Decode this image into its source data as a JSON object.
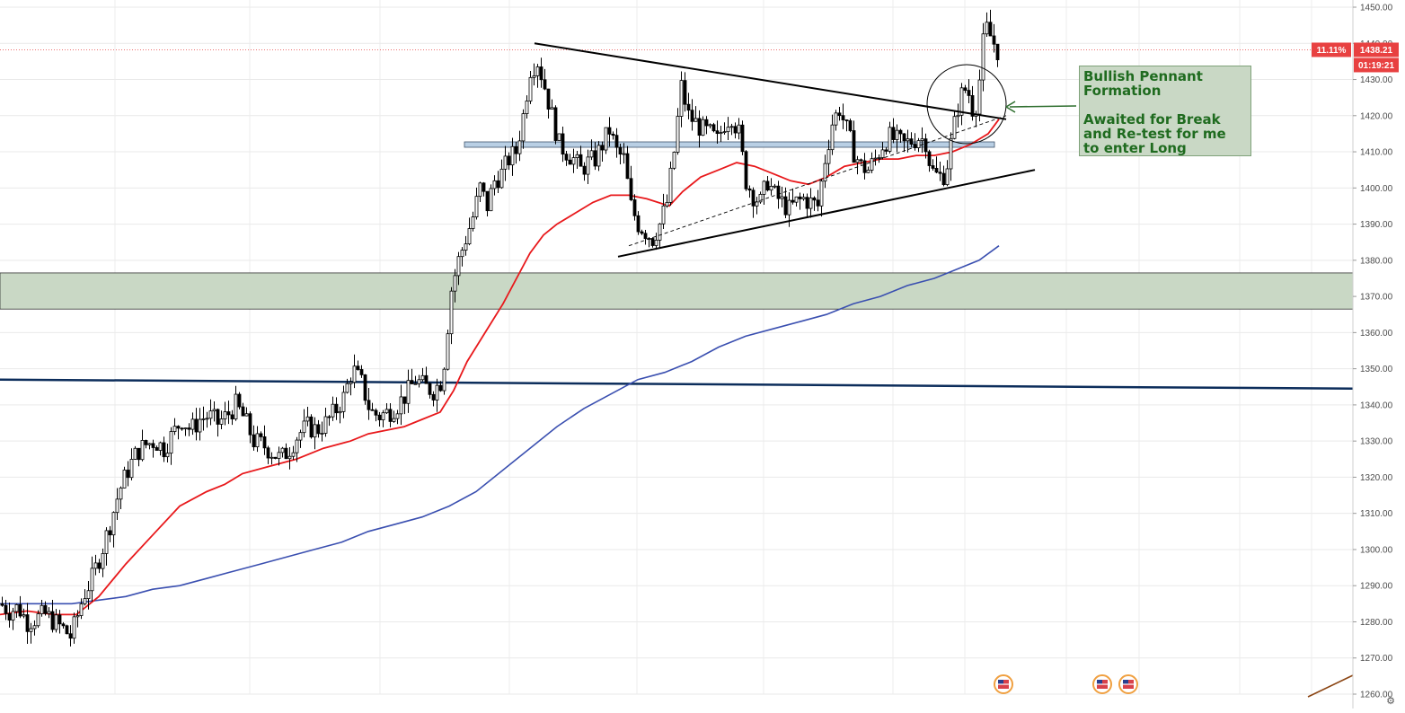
{
  "chart_data": {
    "type": "candlestick",
    "y_range": [
      1258,
      1451
    ],
    "y_ticks": [
      1260,
      1270,
      1280,
      1290,
      1300,
      1310,
      1320,
      1330,
      1340,
      1350,
      1360,
      1370,
      1380,
      1390,
      1400,
      1410,
      1420,
      1430,
      1440,
      1450
    ],
    "y_tick_labels": [
      "1260.00",
      "1270.00",
      "1280.00",
      "1290.00",
      "1300.00",
      "1310.00",
      "1320.00",
      "1330.00",
      "1340.00",
      "1350.00",
      "1360.00",
      "1370.00",
      "1380.00",
      "1390.00",
      "1400.00",
      "1410.00",
      "1420.00",
      "1430.00",
      "1440.00",
      "1450.00"
    ],
    "last_price": "1438.21",
    "change_percent": "11.11%",
    "countdown": "01:19:21",
    "support_zone": [
      1366.5,
      1376.5
    ],
    "resistance_level": 1412,
    "horizontal_line": {
      "start": 1347,
      "end": 1344.5
    },
    "price_path": [
      [
        0,
        1285
      ],
      [
        10,
        1283
      ],
      [
        20,
        1284
      ],
      [
        30,
        1280
      ],
      [
        40,
        1281
      ],
      [
        50,
        1282
      ],
      [
        60,
        1280
      ],
      [
        70,
        1278
      ],
      [
        78,
        1276
      ],
      [
        84,
        1280
      ],
      [
        92,
        1287
      ],
      [
        102,
        1292
      ],
      [
        112,
        1299
      ],
      [
        122,
        1307
      ],
      [
        132,
        1316
      ],
      [
        142,
        1322
      ],
      [
        152,
        1327
      ],
      [
        162,
        1329
      ],
      [
        172,
        1330
      ],
      [
        182,
        1328
      ],
      [
        192,
        1332
      ],
      [
        202,
        1336
      ],
      [
        212,
        1333
      ],
      [
        222,
        1336
      ],
      [
        232,
        1337
      ],
      [
        242,
        1335
      ],
      [
        252,
        1337
      ],
      [
        262,
        1340
      ],
      [
        272,
        1336
      ],
      [
        282,
        1330
      ],
      [
        292,
        1329
      ],
      [
        302,
        1327
      ],
      [
        312,
        1325
      ],
      [
        322,
        1328
      ],
      [
        332,
        1332
      ],
      [
        342,
        1334
      ],
      [
        352,
        1333
      ],
      [
        362,
        1335
      ],
      [
        372,
        1338
      ],
      [
        382,
        1342
      ],
      [
        392,
        1350
      ],
      [
        402,
        1346
      ],
      [
        412,
        1338
      ],
      [
        422,
        1337
      ],
      [
        432,
        1338
      ],
      [
        442,
        1340
      ],
      [
        452,
        1343
      ],
      [
        462,
        1347
      ],
      [
        472,
        1345
      ],
      [
        482,
        1344
      ],
      [
        492,
        1347
      ],
      [
        502,
        1372
      ],
      [
        510,
        1380
      ],
      [
        518,
        1386
      ],
      [
        526,
        1392
      ],
      [
        534,
        1400
      ],
      [
        542,
        1395
      ],
      [
        550,
        1402
      ],
      [
        558,
        1404
      ],
      [
        566,
        1408
      ],
      [
        574,
        1410
      ],
      [
        582,
        1420
      ],
      [
        590,
        1433
      ],
      [
        598,
        1435
      ],
      [
        606,
        1428
      ],
      [
        614,
        1420
      ],
      [
        622,
        1412
      ],
      [
        630,
        1410
      ],
      [
        638,
        1408
      ],
      [
        646,
        1405
      ],
      [
        654,
        1407
      ],
      [
        662,
        1408
      ],
      [
        670,
        1412
      ],
      [
        678,
        1416
      ],
      [
        686,
        1410
      ],
      [
        694,
        1408
      ],
      [
        702,
        1395
      ],
      [
        710,
        1390
      ],
      [
        718,
        1388
      ],
      [
        726,
        1386
      ],
      [
        734,
        1390
      ],
      [
        742,
        1396
      ],
      [
        750,
        1410
      ],
      [
        758,
        1428
      ],
      [
        766,
        1420
      ],
      [
        774,
        1418
      ],
      [
        782,
        1416
      ],
      [
        790,
        1415
      ],
      [
        798,
        1413
      ],
      [
        806,
        1418
      ],
      [
        814,
        1420
      ],
      [
        822,
        1415
      ],
      [
        830,
        1402
      ],
      [
        838,
        1398
      ],
      [
        846,
        1396
      ],
      [
        854,
        1402
      ],
      [
        862,
        1398
      ],
      [
        870,
        1396
      ],
      [
        878,
        1394
      ],
      [
        886,
        1396
      ],
      [
        894,
        1397
      ],
      [
        902,
        1396
      ],
      [
        910,
        1395
      ],
      [
        918,
        1408
      ],
      [
        926,
        1418
      ],
      [
        934,
        1422
      ],
      [
        942,
        1416
      ],
      [
        950,
        1410
      ],
      [
        958,
        1406
      ],
      [
        966,
        1405
      ],
      [
        974,
        1408
      ],
      [
        982,
        1412
      ],
      [
        990,
        1414
      ],
      [
        998,
        1413
      ],
      [
        1006,
        1412
      ],
      [
        1014,
        1413
      ],
      [
        1022,
        1414
      ],
      [
        1030,
        1413
      ],
      [
        1036,
        1405
      ],
      [
        1044,
        1403
      ],
      [
        1052,
        1404
      ],
      [
        1060,
        1415
      ],
      [
        1068,
        1425
      ],
      [
        1076,
        1428
      ],
      [
        1084,
        1420
      ],
      [
        1090,
        1430
      ],
      [
        1096,
        1445
      ],
      [
        1102,
        1442
      ],
      [
        1110,
        1438
      ]
    ],
    "sma_red": [
      [
        0,
        1282
      ],
      [
        30,
        1283
      ],
      [
        60,
        1282
      ],
      [
        85,
        1282
      ],
      [
        110,
        1287
      ],
      [
        140,
        1296
      ],
      [
        170,
        1304
      ],
      [
        200,
        1312
      ],
      [
        230,
        1316
      ],
      [
        250,
        1318
      ],
      [
        270,
        1321
      ],
      [
        300,
        1323
      ],
      [
        330,
        1325
      ],
      [
        360,
        1328
      ],
      [
        390,
        1330
      ],
      [
        410,
        1332
      ],
      [
        430,
        1333
      ],
      [
        450,
        1334
      ],
      [
        470,
        1336
      ],
      [
        490,
        1338
      ],
      [
        505,
        1344
      ],
      [
        520,
        1352
      ],
      [
        540,
        1360
      ],
      [
        560,
        1368
      ],
      [
        575,
        1375
      ],
      [
        590,
        1382
      ],
      [
        605,
        1387
      ],
      [
        620,
        1390
      ],
      [
        640,
        1393
      ],
      [
        660,
        1396
      ],
      [
        680,
        1398
      ],
      [
        700,
        1398
      ],
      [
        720,
        1397
      ],
      [
        745,
        1395
      ],
      [
        760,
        1399
      ],
      [
        780,
        1403
      ],
      [
        800,
        1405
      ],
      [
        820,
        1407
      ],
      [
        840,
        1406
      ],
      [
        860,
        1404
      ],
      [
        880,
        1402
      ],
      [
        900,
        1401
      ],
      [
        920,
        1403
      ],
      [
        940,
        1406
      ],
      [
        960,
        1407
      ],
      [
        980,
        1408
      ],
      [
        1000,
        1408
      ],
      [
        1020,
        1409
      ],
      [
        1040,
        1409
      ],
      [
        1060,
        1410
      ],
      [
        1080,
        1412
      ],
      [
        1100,
        1415
      ],
      [
        1112,
        1419
      ]
    ],
    "sma_blue": [
      [
        0,
        1285
      ],
      [
        40,
        1285
      ],
      [
        80,
        1285
      ],
      [
        110,
        1286
      ],
      [
        140,
        1287
      ],
      [
        170,
        1289
      ],
      [
        200,
        1290
      ],
      [
        230,
        1292
      ],
      [
        260,
        1294
      ],
      [
        290,
        1296
      ],
      [
        320,
        1298
      ],
      [
        350,
        1300
      ],
      [
        380,
        1302
      ],
      [
        410,
        1305
      ],
      [
        440,
        1307
      ],
      [
        470,
        1309
      ],
      [
        500,
        1312
      ],
      [
        530,
        1316
      ],
      [
        560,
        1322
      ],
      [
        590,
        1328
      ],
      [
        620,
        1334
      ],
      [
        650,
        1339
      ],
      [
        680,
        1343
      ],
      [
        710,
        1347
      ],
      [
        740,
        1349
      ],
      [
        770,
        1352
      ],
      [
        800,
        1356
      ],
      [
        830,
        1359
      ],
      [
        860,
        1361
      ],
      [
        890,
        1363
      ],
      [
        920,
        1365
      ],
      [
        950,
        1368
      ],
      [
        980,
        1370
      ],
      [
        1010,
        1373
      ],
      [
        1040,
        1375
      ],
      [
        1070,
        1378
      ],
      [
        1090,
        1380
      ],
      [
        1112,
        1384
      ]
    ],
    "trend_lines": [
      {
        "name": "upper",
        "points": [
          [
            595,
            1440
          ],
          [
            1120,
            1419
          ]
        ]
      },
      {
        "name": "lower",
        "points": [
          [
            688,
            1381
          ],
          [
            1152,
            1405
          ]
        ]
      },
      {
        "name": "dashed",
        "points": [
          [
            700,
            1384
          ],
          [
            1120,
            1420
          ]
        ]
      }
    ],
    "annotation": {
      "line1": "Bullish Pennant",
      "line2": "Formation",
      "line3": "Awaited for Break",
      "line4": "and Re-test for me",
      "line5": "to enter Long"
    },
    "colors": {
      "up": "#ffffff",
      "down": "#000000",
      "sma_fast": "#e8181b",
      "sma_slow": "#3a4fb0",
      "support_zone": "#c9d8c5",
      "resistance_band": "#b9cfe4",
      "long_line": "#0c2d5b",
      "badge": "#e84141",
      "arrow": "#2e6e2e"
    }
  }
}
